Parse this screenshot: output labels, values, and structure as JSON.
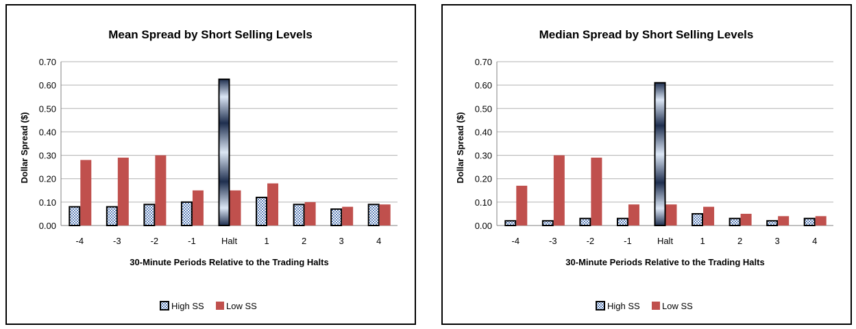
{
  "colors": {
    "high": "#5b7fb8",
    "high_dark": "#1f2f4f",
    "low": "#c0504d",
    "grid": "#b0b0b0"
  },
  "chart_data": [
    {
      "type": "bar",
      "title": "Mean Spread by Short Selling Levels",
      "xlabel": "30-Minute Periods Relative to the Trading Halts",
      "ylabel": "Dollar Spread ($)",
      "categories": [
        "-4",
        "-3",
        "-2",
        "-1",
        "Halt",
        "1",
        "2",
        "3",
        "4"
      ],
      "yticks": [
        "0.00",
        "0.10",
        "0.20",
        "0.30",
        "0.40",
        "0.50",
        "0.60",
        "0.70"
      ],
      "ylim": [
        0,
        0.7
      ],
      "grid": true,
      "legend": "bottom",
      "series": [
        {
          "name": "High SS",
          "values": [
            0.08,
            0.08,
            0.09,
            0.1,
            0.625,
            0.12,
            0.09,
            0.07,
            0.09
          ]
        },
        {
          "name": "Low SS",
          "values": [
            0.28,
            0.29,
            0.3,
            0.15,
            0.15,
            0.18,
            0.1,
            0.08,
            0.09
          ]
        }
      ]
    },
    {
      "type": "bar",
      "title": "Median Spread by Short Selling Levels",
      "xlabel": "30-Minute Periods Relative to the Trading Halts",
      "ylabel": "Dollar Spread ($)",
      "categories": [
        "-4",
        "-3",
        "-2",
        "-1",
        "Halt",
        "1",
        "2",
        "3",
        "4"
      ],
      "yticks": [
        "0.00",
        "0.10",
        "0.20",
        "0.30",
        "0.40",
        "0.50",
        "0.60",
        "0.70"
      ],
      "ylim": [
        0,
        0.7
      ],
      "grid": true,
      "legend": "bottom",
      "series": [
        {
          "name": "High SS",
          "values": [
            0.02,
            0.02,
            0.03,
            0.03,
            0.61,
            0.05,
            0.03,
            0.02,
            0.03
          ]
        },
        {
          "name": "Low SS",
          "values": [
            0.17,
            0.3,
            0.29,
            0.09,
            0.09,
            0.08,
            0.05,
            0.04,
            0.04
          ]
        }
      ]
    }
  ]
}
